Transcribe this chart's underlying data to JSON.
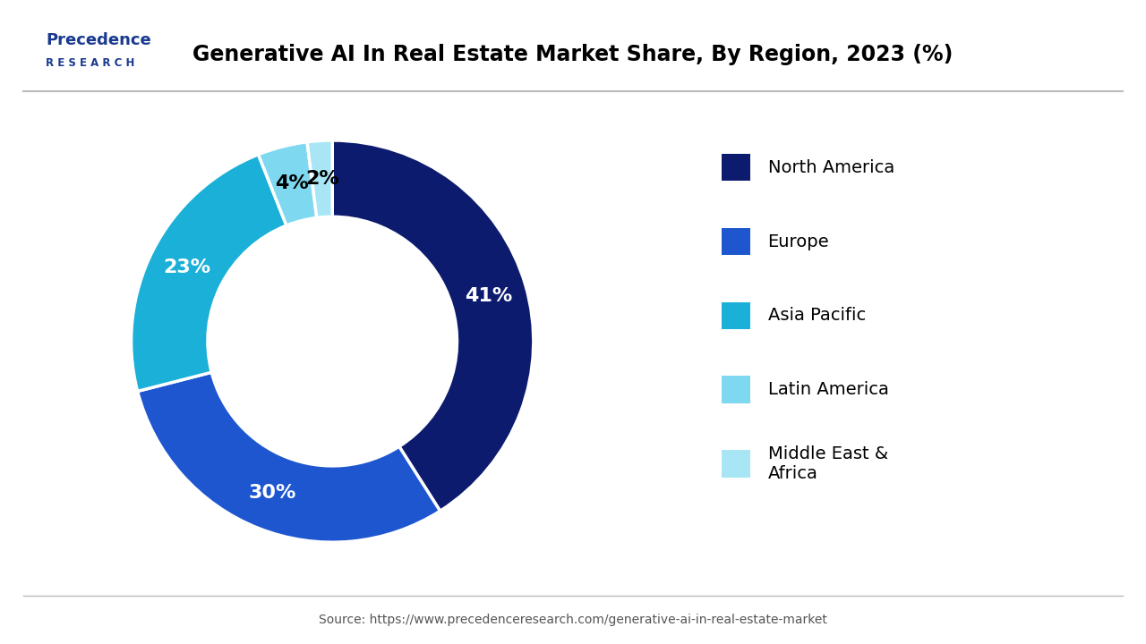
{
  "title": "Generative AI In Real Estate Market Share, By Region, 2023 (%)",
  "labels": [
    "North America",
    "Europe",
    "Asia Pacific",
    "Latin America",
    "Middle East &\nAfrica"
  ],
  "values": [
    41,
    30,
    23,
    4,
    2
  ],
  "colors": [
    "#0d1b6e",
    "#1e56d0",
    "#1ab0d8",
    "#7dd8f0",
    "#a8e6f5"
  ],
  "pct_labels": [
    "41%",
    "30%",
    "23%",
    "4%",
    "2%"
  ],
  "pct_label_colors": [
    "white",
    "white",
    "white",
    "black",
    "black"
  ],
  "background_color": "#ffffff",
  "source_text": "Source: https://www.precedenceresearch.com/generative-ai-in-real-estate-market",
  "logo_line1": "Precedence",
  "logo_line2": "R E S E A R C H"
}
